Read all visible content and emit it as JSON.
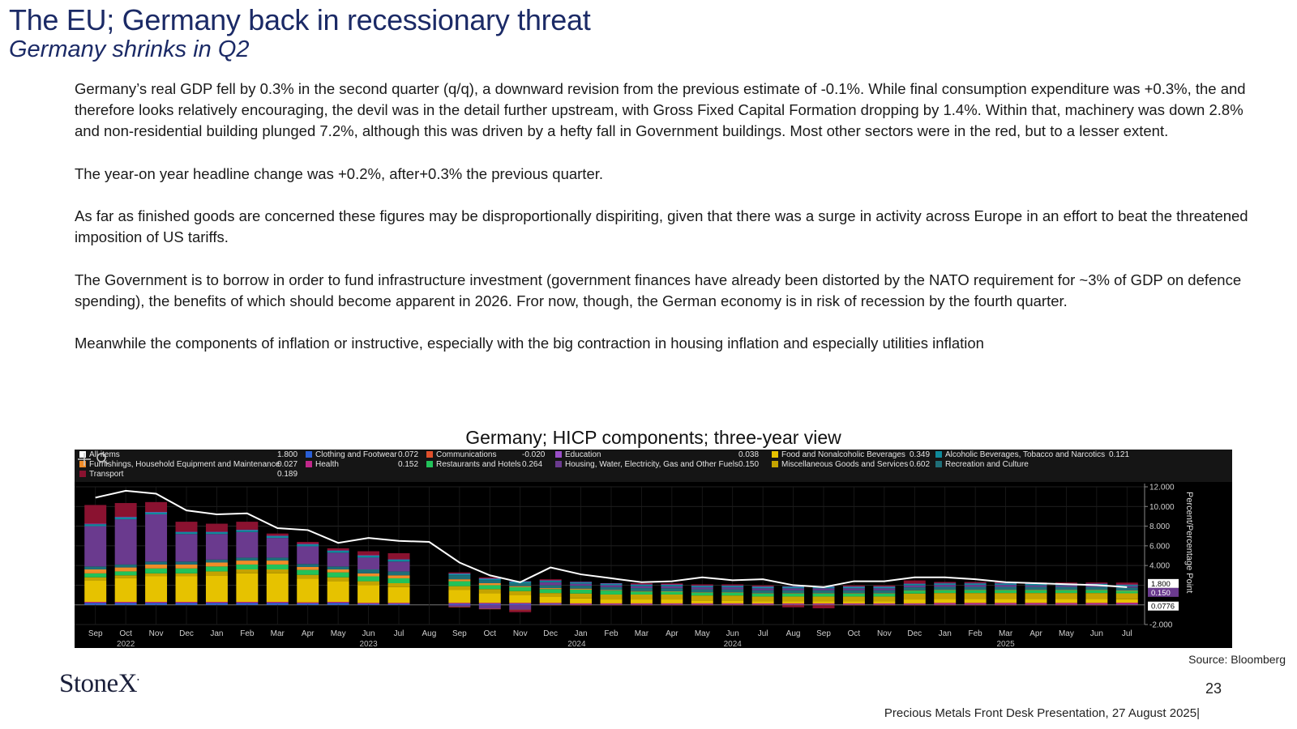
{
  "header": {
    "title": "The EU; Germany back in recessionary threat",
    "subtitle": "Germany shrinks in Q2"
  },
  "body": {
    "paragraphs": [
      "Germany’s real GDP fell by 0.3% in the second quarter (q/q), a downward revision from the previous estimate of -0.1%.   While final consumption expenditure was +0.3%, the and therefore looks relatively encouraging, the devil was in the detail further upstream, with Gross Fixed Capital Formation dropping by 1.4%.  Within that, machinery was down 2.8% and non-residential building plunged 7.2%, although this was driven by a hefty fall in Government buildings.  Most other sectors were in the red, but to a lesser extent.",
      "The year-on year headline change was +0.2%, after+0.3% the previous quarter.",
      "As far as finished goods are concerned these figures may be disproportionally dispiriting, given that there was a surge in activity across Europe in an effort to beat the threatened imposition of US tariffs.",
      "The Government is to borrow in order to fund infrastructure investment (government finances have already been distorted by the NATO requirement for ~3% of GDP on defence spending), the benefits of which should become apparent in 2026.  Fror now, though, the German economy is in risk of recession by the fourth quarter.",
      "Meanwhile the components of inflation or instructive, especially with the big contraction in housing inflation and especially utilities inflation"
    ]
  },
  "chart_title": "Germany; HICP components; three-year view",
  "chart_data": {
    "type": "bar",
    "stacked": true,
    "ylabel": "Percent/Percentage Point",
    "ylim": [
      -2,
      12
    ],
    "yticks": [
      "12.000",
      "10.000",
      "8.000",
      "6.000",
      "4.000",
      "2.000",
      "-2.000"
    ],
    "categories": [
      "Sep",
      "Oct",
      "Nov",
      "Dec",
      "Jan",
      "Feb",
      "Mar",
      "Apr",
      "May",
      "Jun",
      "Jul",
      "Aug",
      "Sep",
      "Oct",
      "Nov",
      "Dec",
      "Jan",
      "Feb",
      "Mar",
      "Apr",
      "May",
      "Jun",
      "Jul",
      "Aug",
      "Sep",
      "Oct",
      "Nov",
      "Dec",
      "Jan",
      "Feb",
      "Mar",
      "Apr",
      "May",
      "Jun",
      "Jul"
    ],
    "year_labels": [
      "2022",
      "2023",
      "2024",
      "2024",
      "2025"
    ],
    "series": [
      {
        "name": "Clothing and Footwear",
        "color": "#2a5fd6",
        "value": "0.072",
        "values": [
          0.2,
          0.2,
          0.2,
          0.2,
          0.2,
          0.2,
          0.2,
          0.15,
          0.2,
          0.1,
          0.1,
          0,
          0.1,
          0.1,
          0.1,
          0.1,
          0.05,
          0.05,
          0.05,
          0.05,
          0.05,
          0.05,
          0.05,
          0.05,
          0.05,
          0.05,
          0.05,
          0.05,
          0.05,
          0.05,
          0.05,
          0.05,
          0.05,
          0.05,
          0.07
        ]
      },
      {
        "name": "Health",
        "color": "#c0288a",
        "value": "0.152",
        "values": [
          0.1,
          0.1,
          0.1,
          0.1,
          0.1,
          0.1,
          0.1,
          0.1,
          0.1,
          0.1,
          0.1,
          0,
          0.1,
          0.1,
          0.1,
          0.1,
          0.1,
          0.1,
          0.1,
          0.1,
          0.1,
          0.1,
          0.1,
          0.1,
          0.1,
          0.1,
          0.1,
          0.1,
          0.15,
          0.15,
          0.15,
          0.15,
          0.15,
          0.15,
          0.15
        ]
      },
      {
        "name": "Food and Nonalcoholic Beverages",
        "color": "#e6c200",
        "value": "0.349",
        "values": [
          2.2,
          2.4,
          2.6,
          2.6,
          2.7,
          2.9,
          2.9,
          2.4,
          2.1,
          1.8,
          1.6,
          0,
          1.3,
          1.0,
          0.8,
          0.6,
          0.5,
          0.4,
          0.4,
          0.4,
          0.3,
          0.3,
          0.2,
          0.2,
          0.2,
          0.2,
          0.2,
          0.4,
          0.4,
          0.4,
          0.4,
          0.4,
          0.4,
          0.4,
          0.35
        ]
      },
      {
        "name": "Miscellaneous Goods and Services",
        "color": "#c4a300",
        "value": "0.602",
        "values": [
          0.3,
          0.3,
          0.3,
          0.3,
          0.4,
          0.4,
          0.4,
          0.4,
          0.4,
          0.4,
          0.4,
          0,
          0.4,
          0.4,
          0.4,
          0.4,
          0.5,
          0.5,
          0.5,
          0.5,
          0.5,
          0.5,
          0.5,
          0.5,
          0.5,
          0.5,
          0.5,
          0.6,
          0.6,
          0.6,
          0.6,
          0.6,
          0.6,
          0.6,
          0.6
        ]
      },
      {
        "name": "Restaurants and Hotels",
        "color": "#22c25a",
        "value": "0.264",
        "values": [
          0.4,
          0.4,
          0.5,
          0.5,
          0.5,
          0.5,
          0.5,
          0.5,
          0.5,
          0.5,
          0.5,
          0,
          0.5,
          0.4,
          0.4,
          0.4,
          0.4,
          0.4,
          0.3,
          0.3,
          0.3,
          0.3,
          0.3,
          0.3,
          0.3,
          0.3,
          0.3,
          0.3,
          0.3,
          0.3,
          0.3,
          0.3,
          0.3,
          0.3,
          0.26
        ]
      },
      {
        "name": "Furnishings, Household Equipment and Maintenance",
        "color": "#f08c28",
        "value": "0.027",
        "values": [
          0.4,
          0.4,
          0.4,
          0.4,
          0.4,
          0.4,
          0.4,
          0.3,
          0.3,
          0.3,
          0.3,
          0,
          0.2,
          0.2,
          0.1,
          0.1,
          0.1,
          0.05,
          0.05,
          0.03,
          0.03,
          0.03,
          0.03,
          0.03,
          0.03,
          0.03,
          0.03,
          0.03,
          0.03,
          0.03,
          0.03,
          0.03,
          0.03,
          0.03,
          0.03
        ]
      },
      {
        "name": "Recreation and Culture",
        "color": "#1f6f78",
        "value": "",
        "values": [
          0.3,
          0.3,
          0.3,
          0.3,
          0.3,
          0.3,
          0.3,
          0.3,
          0.3,
          0.4,
          0.4,
          0,
          0.4,
          0.3,
          0.3,
          0.3,
          0.3,
          0.3,
          0.3,
          0.3,
          0.3,
          0.3,
          0.3,
          0.3,
          0.3,
          0.3,
          0.3,
          0.3,
          0.3,
          0.3,
          0.3,
          0.3,
          0.3,
          0.3,
          0.3
        ]
      },
      {
        "name": "Housing, Water, Electricity, Gas and Other Fuels",
        "color": "#6a3a8e",
        "value": "0.150",
        "values": [
          4.1,
          4.6,
          4.8,
          2.8,
          2.6,
          2.6,
          2.0,
          1.8,
          1.4,
          1.2,
          1.0,
          0,
          -0.2,
          -0.4,
          -0.5,
          0.3,
          0.2,
          0.2,
          0.2,
          0.2,
          0.2,
          0.2,
          0.2,
          0.2,
          0.2,
          0.2,
          0.2,
          0.2,
          0.2,
          0.2,
          0.2,
          0.15,
          0.15,
          0.15,
          0.15
        ]
      },
      {
        "name": "Alcoholic Beverages, Tobacco and Narcotics",
        "color": "#0f8a9b",
        "value": "0.121",
        "values": [
          0.2,
          0.2,
          0.2,
          0.2,
          0.2,
          0.2,
          0.2,
          0.2,
          0.2,
          0.2,
          0.2,
          0,
          0.15,
          0.15,
          0.15,
          0.15,
          0.15,
          0.15,
          0.15,
          0.15,
          0.15,
          0.15,
          0.15,
          0.15,
          0.15,
          0.15,
          0.15,
          0.15,
          0.15,
          0.15,
          0.15,
          0.15,
          0.15,
          0.15,
          0.12
        ]
      },
      {
        "name": "Education",
        "color": "#9a4fc8",
        "value": "0.038",
        "values": [
          0.05,
          0.05,
          0.05,
          0.05,
          0.05,
          0.05,
          0.05,
          0.05,
          0.05,
          0.05,
          0.05,
          0,
          0.05,
          0.05,
          0.05,
          0.05,
          0.05,
          0.05,
          0.05,
          0.05,
          0.05,
          0.05,
          0.05,
          0.05,
          0.05,
          0.05,
          0.05,
          0.05,
          0.05,
          0.05,
          0.05,
          0.05,
          0.05,
          0.05,
          0.04
        ]
      },
      {
        "name": "Communications",
        "color": "#e0502c",
        "value": "-0.020",
        "values": [
          0,
          0,
          0,
          0,
          0,
          0,
          0,
          0,
          0,
          0,
          0,
          0,
          -0.05,
          -0.05,
          -0.05,
          -0.05,
          -0.05,
          -0.05,
          -0.05,
          -0.05,
          -0.05,
          -0.05,
          -0.05,
          -0.05,
          -0.05,
          -0.05,
          -0.05,
          -0.05,
          -0.05,
          -0.05,
          -0.05,
          -0.05,
          -0.05,
          -0.05,
          -0.02
        ]
      },
      {
        "name": "Transport",
        "color": "#8a1230",
        "value": "0.189",
        "values": [
          1.9,
          1.4,
          1.0,
          1.0,
          0.8,
          0.8,
          0.2,
          0.2,
          0.2,
          0.4,
          0.6,
          0,
          0.1,
          0.1,
          -0.2,
          0.1,
          0.0,
          0.0,
          0.1,
          0.1,
          0.1,
          0.1,
          0.1,
          -0.2,
          -0.3,
          0.1,
          0.1,
          0.3,
          0.1,
          0.1,
          0.1,
          0.1,
          0.1,
          0.1,
          0.19
        ]
      }
    ],
    "all_items": {
      "name": "All items",
      "color": "#ffffff",
      "value": "1.800",
      "values": [
        10.9,
        11.6,
        11.3,
        9.6,
        9.2,
        9.3,
        7.8,
        7.6,
        6.3,
        6.8,
        6.5,
        6.4,
        4.3,
        3.0,
        2.3,
        3.8,
        3.1,
        2.7,
        2.3,
        2.4,
        2.8,
        2.5,
        2.6,
        2.0,
        1.8,
        2.4,
        2.4,
        2.8,
        2.8,
        2.6,
        2.3,
        2.2,
        2.1,
        2.0,
        1.8
      ]
    },
    "end_labels": [
      "1.800",
      "0.150",
      "0.0776"
    ]
  },
  "source": "Source: Bloomberg",
  "logo": "StoneX",
  "page_number": "23",
  "footer": "Precious Metals Front Desk Presentation, 27 August 2025|"
}
